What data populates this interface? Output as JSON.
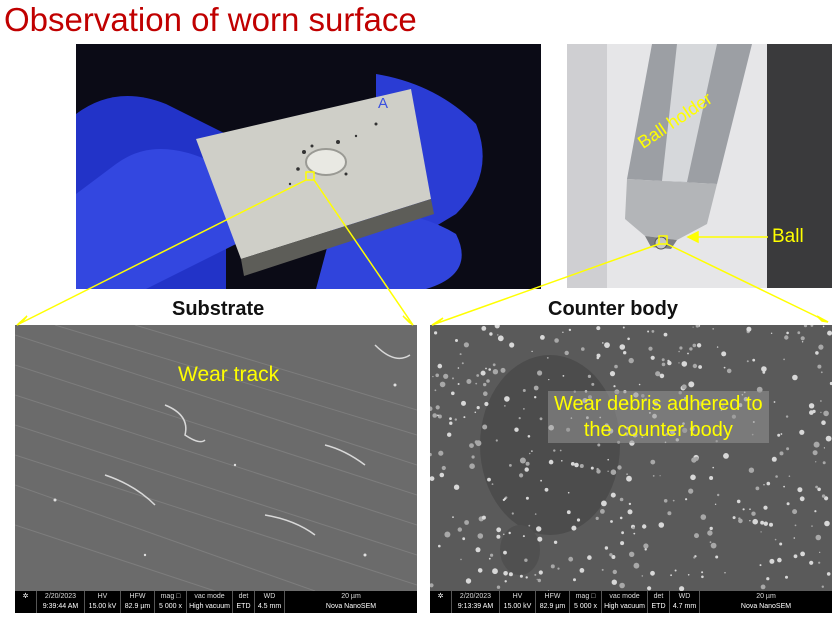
{
  "title": "Observation of worn surface",
  "captions": {
    "substrate": "Substrate",
    "counter_body": "Counter body"
  },
  "labels": {
    "ball_holder": "Ball holder",
    "ball": "Ball",
    "wear_track": "Wear track",
    "debris_line1": "Wear debris adhered to",
    "debris_line2": "the counter body"
  },
  "sem_left": {
    "date": "2/20/2023",
    "time": "9:39:44 AM",
    "hv_h": "HV",
    "hv": "15.00 kV",
    "hfw_h": "HFW",
    "hfw": "82.9 µm",
    "mag_h": "mag □",
    "mag": "5 000 x",
    "vac_h": "vac mode",
    "vac": "High vacuum",
    "det_h": "det",
    "det": "ETD",
    "wd_h": "WD",
    "wd": "4.5 mm",
    "scale": "20 µm",
    "instrument": "Nova NanoSEM"
  },
  "sem_right": {
    "date": "2/20/2023",
    "time": "9:13:39 AM",
    "hv_h": "HV",
    "hv": "15.00 kV",
    "hfw_h": "HFW",
    "hfw": "82.9 µm",
    "mag_h": "mag □",
    "mag": "5 000 x",
    "vac_h": "vac mode",
    "vac": "High vacuum",
    "det_h": "det",
    "det": "ETD",
    "wd_h": "WD",
    "wd": "4.7 mm",
    "scale": "20 µm",
    "instrument": "Nova NanoSEM"
  },
  "sample_mark": "A",
  "colors": {
    "title": "#c00000",
    "annotation": "#ffff00",
    "glove": "#2b3fd6",
    "leader": "#ffff00"
  }
}
